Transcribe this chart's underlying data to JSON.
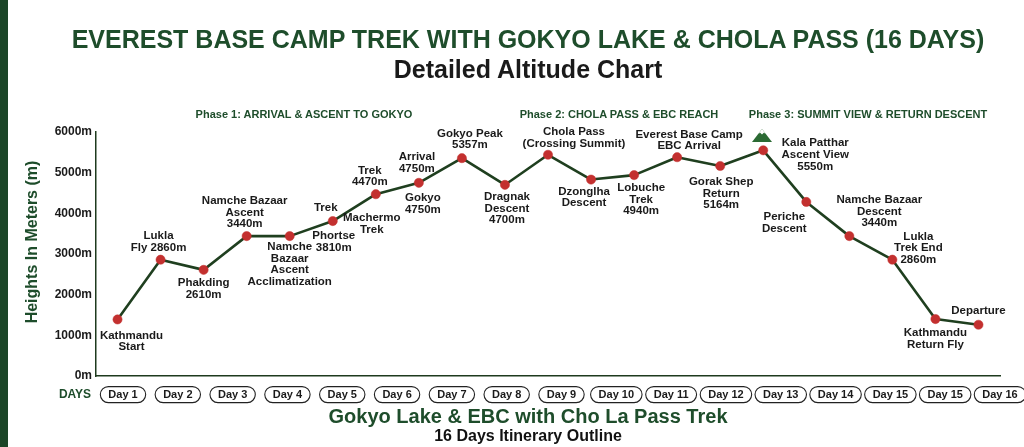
{
  "chart_data": {
    "type": "line",
    "title": "EVEREST BASE CAMP TREK WITH GOKYO LAKE & CHOLA PASS (16 DAYS)",
    "subtitle": "Detailed Altitude Chart",
    "xlabel": "DAYS",
    "ylabel": "Heights In Meters (m)",
    "categories": [
      null,
      null,
      null,
      null,
      null,
      null,
      null,
      null,
      null,
      null,
      null,
      null,
      null,
      null,
      null,
      null,
      null,
      null,
      null,
      null,
      null
    ],
    "values": [
      1390,
      2860,
      2610,
      3440,
      3440,
      3810,
      4470,
      4750,
      5357,
      4700,
      5440,
      4830,
      4940,
      5380,
      5164,
      5550,
      4280,
      3440,
      2860,
      1400,
      1260
    ],
    "color": "#1f3f1f",
    "colors": [
      "#c3302f",
      "#c3302f",
      "#c3302f",
      "#c3302f",
      "#c3302f",
      "#c3302f",
      "#c3302f",
      "#c3302f",
      "#c3302f",
      "#c3302f",
      "#c3302f",
      "#c3302f",
      "#c3302f",
      "#c3302f",
      "#c3302f",
      "#c3302f",
      "#c3302f",
      "#c3302f",
      "#c3302f",
      "#c3302f",
      "#c3302f"
    ],
    "marker": "circle",
    "line_style": "solid",
    "tick_labels": "y",
    "ylim": [
      0,
      6000
    ],
    "yticks": [
      {
        "value": 0,
        "label": "0m"
      },
      {
        "value": 1000,
        "label": "1000m"
      },
      {
        "value": 2000,
        "label": "2000m"
      },
      {
        "value": 3000,
        "label": "3000m"
      },
      {
        "value": 4000,
        "label": "4000m"
      },
      {
        "value": 5000,
        "label": "5000m"
      },
      {
        "value": 6000,
        "label": "6000m"
      }
    ],
    "annotations": [
      "Phase 1: ARRIVAL & ASCENT TO GOKYO",
      "Phase 2: CHOLA PASS & EBC REACH",
      "Phase 3: SUMMIT VIEW & RETURN DESCENT",
      "Day 1",
      "Day 2",
      "Day 3",
      "Day 4",
      "Day 5",
      "Day 6",
      "Day 7",
      "Day 8",
      "Day 9",
      "Day 10",
      "Day 11",
      "Day 12",
      "Day 13",
      "Day 14",
      "Day 15",
      "Day 15",
      "Day 16",
      "Kathmandu\nStart",
      {
        "text": "Lukla\nFly 2860m",
        "y": 2860
      },
      {
        "text": "Phakding\n2610m",
        "y": 2610
      },
      {
        "text": "Namche Bazaar\nAscent\n3440m",
        "y": 3440
      },
      {
        "text": "Namche\nBazaar\nAscent\nAcclimatization",
        "y": 3440
      },
      {
        "text": "Trek",
        "y": 3810
      },
      {
        "text": "Phortse\n3810m",
        "y": 3810
      },
      {
        "text": "Trek\n4470m",
        "y": 4470
      },
      {
        "text": "Machermo\nTrek",
        "y": 4470
      },
      {
        "text": "Arrival\n4750m",
        "y": 4750
      },
      {
        "text": "Gokyo\n4750m",
        "y": 4750
      },
      {
        "text": "Gokyo Peak\n5357m",
        "y": 5357
      },
      {
        "text": "Dragnak\nDescent\n4700m",
        "y": 4700
      },
      "Chola Pass\n(Crossing Summit)",
      {
        "text": "Dzonglha\nDescent",
        "y": 4830
      },
      {
        "text": "Lobuche\nTrek\n4940m",
        "y": 4940
      },
      {
        "text": "Everest Base Camp\nEBC Arrival",
        "y": 5380
      },
      {
        "text": "Gorak Shep\nReturn\n5164m",
        "y": 5164
      },
      "Kala Patthar\nAscent View\n5550m",
      "Periche\nDescent",
      "Namche Bazaar\nDescent\n3440m",
      "Lukla\nTrek End\n2860m",
      {
        "text": "Kathmandu\nReturn Fly",
        "y": 1400
      },
      {
        "text": "Departure",
        "y": 1260
      },
      "Gokyo Lake & EBC with Cho La Pass Trek",
      "16 Days Itinerary Outline"
    ]
  }
}
